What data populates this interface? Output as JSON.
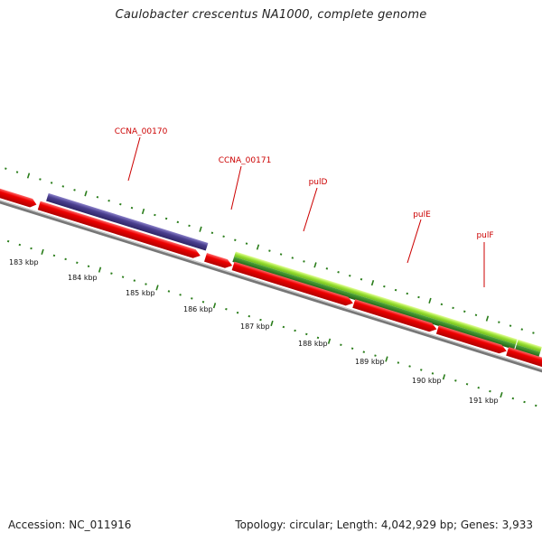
{
  "title": "Caulobacter crescentus NA1000, complete genome",
  "footer": {
    "accession": "Accession: NC_011916",
    "summary": "Topology: circular; Length: 4,042,929 bp; Genes: 3,933"
  },
  "colors": {
    "forward_cds": "#ee0000",
    "purple_feature": "#4a3f8f",
    "green_light": "#99e033",
    "green_dark": "#2e7d1f",
    "backbone": "#777777",
    "tick": "#2a7d1a",
    "label": "#cc0000"
  },
  "scale_labels": [
    "183 kbp",
    "184 kbp",
    "185 kbp",
    "186 kbp",
    "187 kbp",
    "188 kbp",
    "189 kbp",
    "190 kbp",
    "191 kbp"
  ],
  "gene_labels": [
    "CCNA_00170",
    "CCNA_00171",
    "pulD",
    "pulE",
    "pulF"
  ]
}
